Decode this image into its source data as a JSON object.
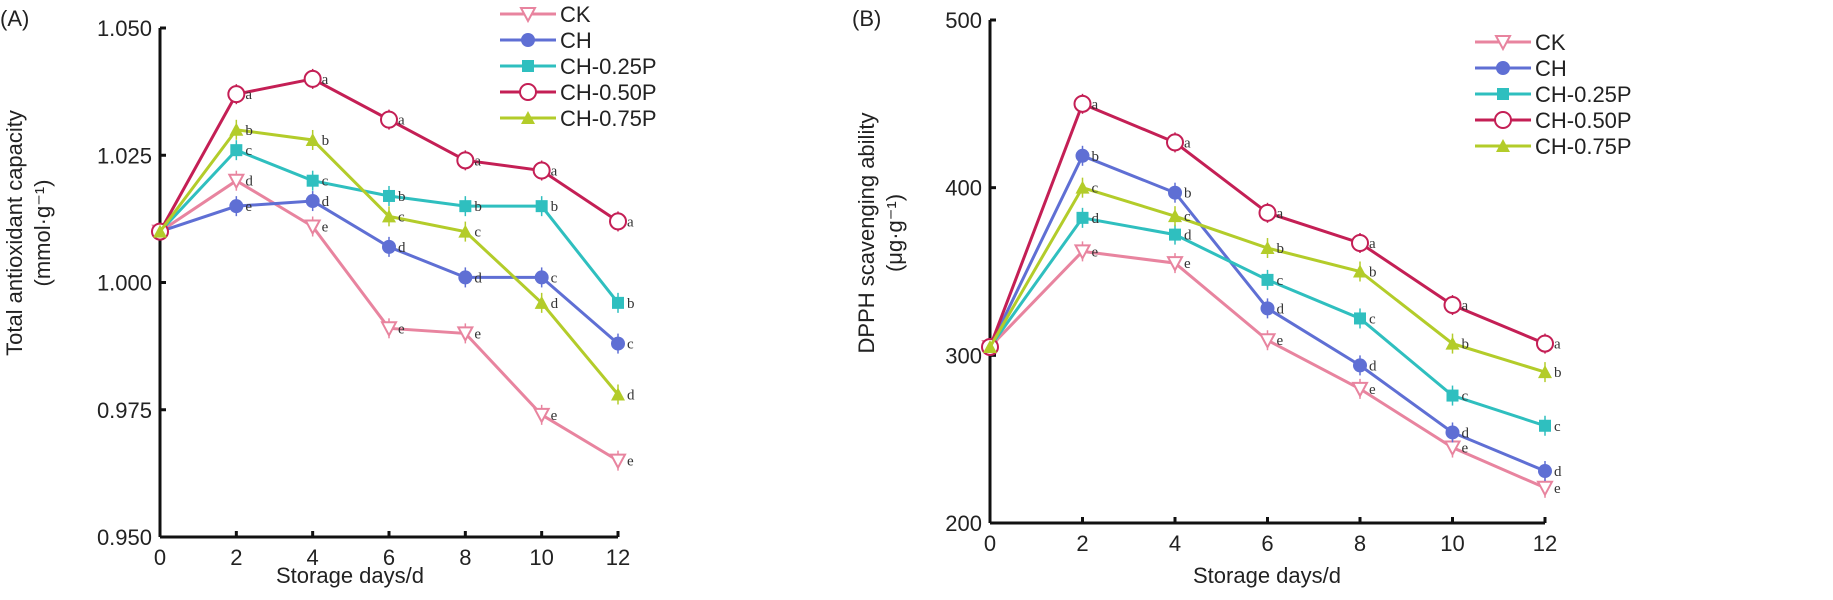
{
  "chart_data": [
    {
      "type": "line",
      "panel_label": "(A)",
      "xlabel": "Storage days/d",
      "ylabel": "Total antioxidant capacity",
      "ylabel_unit": "(mmol·g⁻¹)",
      "x": [
        0,
        2,
        4,
        6,
        8,
        10,
        12
      ],
      "xticks": [
        "0",
        "2",
        "4",
        "6",
        "8",
        "10",
        "12"
      ],
      "ylim": [
        0.95,
        1.05
      ],
      "yticks": [
        "0.950",
        "0.975",
        "1.000",
        "1.025",
        "1.050"
      ],
      "legend_position": "top-right",
      "series": [
        {
          "name": "CK",
          "color": "#e8849f",
          "marker": "open-triangle-down",
          "values": [
            1.01,
            1.02,
            1.011,
            0.991,
            0.99,
            0.974,
            0.965
          ],
          "letters": [
            "",
            "d",
            "e",
            "e",
            "e",
            "e",
            "e"
          ]
        },
        {
          "name": "CH",
          "color": "#5f6fd4",
          "marker": "filled-circle",
          "values": [
            1.01,
            1.015,
            1.016,
            1.007,
            1.001,
            1.001,
            0.988
          ],
          "letters": [
            "",
            "e",
            "d",
            "d",
            "d",
            "c",
            "c"
          ]
        },
        {
          "name": "CH-0.25P",
          "color": "#2fbfbf",
          "marker": "filled-square",
          "values": [
            1.01,
            1.026,
            1.02,
            1.017,
            1.015,
            1.015,
            0.996
          ],
          "letters": [
            "",
            "c",
            "c",
            "b",
            "b",
            "b",
            "b"
          ]
        },
        {
          "name": "CH-0.50P",
          "color": "#c41f55",
          "marker": "open-circle",
          "values": [
            1.01,
            1.037,
            1.04,
            1.032,
            1.024,
            1.022,
            1.012
          ],
          "letters": [
            "",
            "a",
            "a",
            "a",
            "a",
            "a",
            "a"
          ]
        },
        {
          "name": "CH-0.75P",
          "color": "#b3cc2a",
          "marker": "filled-triangle",
          "values": [
            1.01,
            1.03,
            1.028,
            1.013,
            1.01,
            0.996,
            0.978
          ],
          "letters": [
            "",
            "b",
            "b",
            "c",
            "c",
            "d",
            "d"
          ]
        }
      ]
    },
    {
      "type": "line",
      "panel_label": "(B)",
      "xlabel": "Storage days/d",
      "ylabel": "DPPH scavenging ability",
      "ylabel_unit": "(μg·g⁻¹)",
      "x": [
        0,
        2,
        4,
        6,
        8,
        10,
        12
      ],
      "xticks": [
        "0",
        "2",
        "4",
        "6",
        "8",
        "10",
        "12"
      ],
      "ylim": [
        200,
        500
      ],
      "yticks": [
        "200",
        "300",
        "400",
        "500"
      ],
      "legend_position": "top-right",
      "series": [
        {
          "name": "CK",
          "color": "#e8849f",
          "marker": "open-triangle-down",
          "values": [
            305,
            362,
            355,
            309,
            280,
            245,
            221
          ],
          "letters": [
            "",
            "e",
            "e",
            "e",
            "e",
            "e",
            "e"
          ]
        },
        {
          "name": "CH",
          "color": "#5f6fd4",
          "marker": "filled-circle",
          "values": [
            305,
            419,
            397,
            328,
            294,
            254,
            231
          ],
          "letters": [
            "",
            "b",
            "b",
            "d",
            "d",
            "d",
            "d"
          ]
        },
        {
          "name": "CH-0.25P",
          "color": "#2fbfbf",
          "marker": "filled-square",
          "values": [
            305,
            382,
            372,
            345,
            322,
            276,
            258
          ],
          "letters": [
            "",
            "d",
            "d",
            "c",
            "c",
            "c",
            "c"
          ]
        },
        {
          "name": "CH-0.50P",
          "color": "#c41f55",
          "marker": "open-circle",
          "values": [
            305,
            450,
            427,
            385,
            367,
            330,
            307
          ],
          "letters": [
            "",
            "a",
            "a",
            "a",
            "a",
            "a",
            "a"
          ]
        },
        {
          "name": "CH-0.75P",
          "color": "#b3cc2a",
          "marker": "filled-triangle",
          "values": [
            305,
            400,
            383,
            364,
            350,
            307,
            290
          ],
          "letters": [
            "",
            "c",
            "c",
            "b",
            "b",
            "b",
            "b"
          ]
        }
      ]
    }
  ]
}
